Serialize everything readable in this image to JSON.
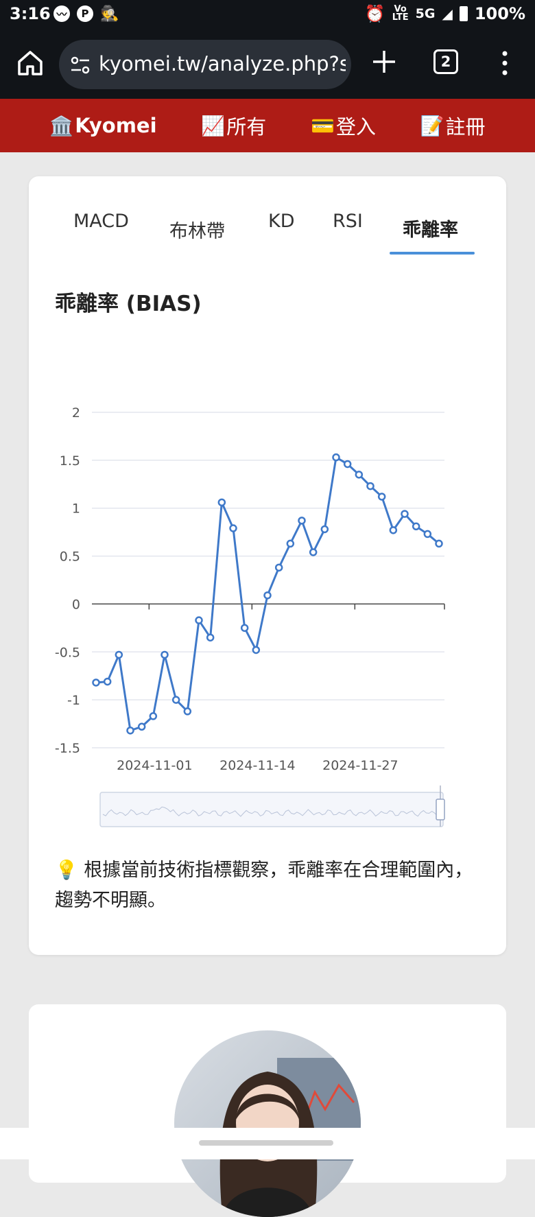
{
  "status_bar": {
    "time": "3:16",
    "left_icons": [
      "messenger-icon",
      "p-icon",
      "incognito-icon"
    ],
    "network_tag_top": "Vo",
    "network_tag_bottom": "LTE",
    "network": "5G",
    "battery": "100%"
  },
  "browser": {
    "url": "kyomei.tw/analyze.php?stock",
    "tab_count": "2"
  },
  "site_nav": {
    "brand": "Kyomei",
    "brand_emoji": "🏛️",
    "items": [
      {
        "emoji": "📈",
        "label": "所有"
      },
      {
        "emoji": "💳",
        "label": "登入"
      },
      {
        "emoji": "📝",
        "label": "註冊"
      }
    ]
  },
  "tabs": [
    {
      "label": "MACD",
      "active": false
    },
    {
      "label": "布林帶",
      "active": false
    },
    {
      "label": "KD",
      "active": false
    },
    {
      "label": "RSI",
      "active": false
    },
    {
      "label": "乖離率",
      "active": true
    }
  ],
  "section_title": "乖離率 (BIAS)",
  "chart_data": {
    "type": "line",
    "title": "",
    "xlabel": "",
    "ylabel": "",
    "ylim": [
      -1.5,
      2
    ],
    "yticks": [
      -1.5,
      -1,
      -0.5,
      0,
      0.5,
      1,
      1.5,
      2
    ],
    "ytick_labels": [
      "-1.5",
      "-1",
      "-0.5",
      "0",
      "0.5",
      "1",
      "1.5",
      "2"
    ],
    "xtick_labels": [
      "2024-11-01",
      "2024-11-14",
      "2024-11-27"
    ],
    "xtick_indices": [
      5,
      14,
      23
    ],
    "grid": true,
    "legend": "none",
    "series_color": "#3f79c9",
    "series": [
      {
        "values": [
          -0.82,
          -0.81,
          -0.53,
          -1.32,
          -1.28,
          -1.17,
          -0.53,
          -1.0,
          -1.12,
          -0.17,
          -0.35,
          1.06,
          0.79,
          -0.25,
          -0.48,
          0.09,
          0.38,
          0.63,
          0.87,
          0.54,
          0.78,
          1.53,
          1.46,
          1.35,
          1.23,
          1.12,
          0.77,
          0.94,
          0.81,
          0.73,
          0.63
        ]
      }
    ]
  },
  "insight": {
    "emoji": "💡",
    "text": "根據當前技術指標觀察，乖離率在合理範圍內，趨勢不明顯。"
  }
}
